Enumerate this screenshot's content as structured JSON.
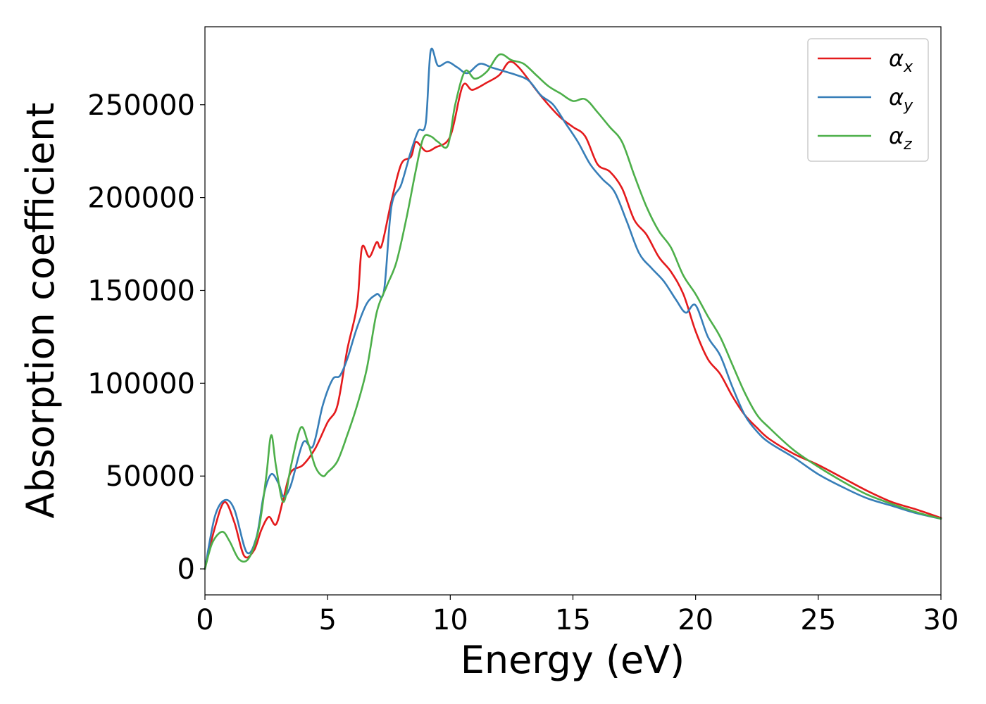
{
  "chart_data": {
    "type": "line",
    "title": "",
    "xlabel": "Energy (eV)",
    "ylabel": "Absorption coefficient",
    "xlim": [
      0,
      30
    ],
    "ylim": [
      -14000,
      292000
    ],
    "xticks": [
      0,
      5,
      10,
      15,
      20,
      25,
      30
    ],
    "yticks": [
      0,
      50000,
      100000,
      150000,
      200000,
      250000
    ],
    "legend_position": "top-right",
    "grid": false,
    "series": [
      {
        "name": "αx",
        "symbol": "α",
        "subscript": "x",
        "color": "#e41a1c",
        "x": [
          0,
          0.4,
          0.8,
          1.2,
          1.6,
          2.0,
          2.3,
          2.6,
          2.9,
          3.2,
          3.5,
          4.0,
          4.5,
          5.0,
          5.4,
          5.8,
          6.2,
          6.4,
          6.7,
          7.0,
          7.2,
          7.6,
          8.0,
          8.4,
          8.6,
          9.0,
          9.4,
          10.0,
          10.5,
          10.9,
          11.5,
          12.0,
          12.4,
          12.8,
          13.5,
          14.0,
          14.5,
          15.0,
          15.5,
          16.0,
          16.5,
          17.0,
          17.5,
          18.0,
          18.5,
          19.0,
          19.5,
          20.0,
          20.5,
          21.0,
          21.5,
          22.0,
          22.5,
          23.0,
          24.0,
          25.0,
          26.0,
          27.0,
          28.0,
          29.0,
          30.0
        ],
        "y": [
          0,
          22000,
          36000,
          25000,
          7000,
          10000,
          21000,
          28000,
          24000,
          38000,
          52000,
          56000,
          65000,
          79000,
          88000,
          118000,
          142000,
          173000,
          168000,
          176000,
          174000,
          198000,
          218000,
          222000,
          230000,
          225000,
          227000,
          233000,
          260000,
          258000,
          262000,
          266000,
          273000,
          270000,
          258000,
          250000,
          243000,
          238000,
          233000,
          218000,
          214000,
          205000,
          188000,
          180000,
          168000,
          160000,
          148000,
          128000,
          113000,
          105000,
          93000,
          83000,
          76000,
          70000,
          62000,
          56000,
          49000,
          42000,
          36000,
          32000,
          27500
        ]
      },
      {
        "name": "αy",
        "symbol": "α",
        "subscript": "y",
        "color": "#377eb8",
        "x": [
          0,
          0.4,
          0.8,
          1.2,
          1.7,
          2.1,
          2.4,
          2.7,
          3.0,
          3.2,
          3.5,
          4.0,
          4.4,
          4.8,
          5.2,
          5.5,
          5.8,
          6.2,
          6.6,
          7.0,
          7.3,
          7.6,
          8.0,
          8.4,
          8.7,
          9.0,
          9.2,
          9.5,
          9.9,
          10.3,
          10.7,
          11.2,
          11.7,
          12.2,
          12.7,
          13.2,
          13.7,
          14.2,
          14.7,
          15.2,
          15.7,
          16.2,
          16.7,
          17.2,
          17.7,
          18.2,
          18.7,
          19.2,
          19.6,
          20.0,
          20.5,
          21.0,
          21.5,
          22.0,
          22.5,
          23.0,
          24.0,
          25.0,
          26.0,
          27.0,
          28.0,
          29.0,
          30.0
        ],
        "y": [
          0,
          28000,
          37000,
          32000,
          9000,
          17000,
          40000,
          51000,
          46000,
          39000,
          45000,
          68000,
          66000,
          88000,
          102000,
          104000,
          113000,
          130000,
          143000,
          148000,
          150000,
          195000,
          207000,
          225000,
          236000,
          240000,
          279000,
          271000,
          273000,
          270000,
          267000,
          272000,
          270000,
          268000,
          266000,
          263000,
          255000,
          250000,
          240000,
          230000,
          218000,
          210000,
          203000,
          187000,
          170000,
          162000,
          155000,
          145000,
          138000,
          142000,
          125000,
          115000,
          98000,
          83000,
          74000,
          68000,
          60000,
          51000,
          44000,
          38000,
          34000,
          30000,
          27000
        ]
      },
      {
        "name": "αz",
        "symbol": "α",
        "subscript": "z",
        "color": "#4daf4a",
        "x": [
          0,
          0.3,
          0.7,
          1.0,
          1.4,
          1.8,
          2.2,
          2.5,
          2.7,
          2.9,
          3.2,
          3.5,
          3.9,
          4.2,
          4.5,
          4.8,
          5.0,
          5.4,
          5.8,
          6.2,
          6.6,
          7.0,
          7.4,
          7.8,
          8.2,
          8.6,
          8.9,
          9.2,
          9.5,
          9.9,
          10.2,
          10.6,
          11.0,
          11.5,
          12.0,
          12.5,
          13.0,
          13.5,
          14.0,
          14.5,
          15.0,
          15.5,
          16.0,
          16.5,
          17.0,
          17.5,
          18.0,
          18.5,
          19.0,
          19.5,
          20.0,
          20.5,
          21.0,
          21.5,
          22.0,
          22.5,
          23.0,
          24.0,
          25.0,
          26.0,
          27.0,
          28.0,
          29.0,
          30.0
        ],
        "y": [
          0,
          14000,
          20000,
          15000,
          5000,
          6000,
          22000,
          50000,
          72000,
          55000,
          36000,
          55000,
          76000,
          68000,
          55000,
          50000,
          52000,
          58000,
          72000,
          88000,
          108000,
          138000,
          152000,
          165000,
          188000,
          215000,
          232000,
          233000,
          230000,
          228000,
          250000,
          268000,
          264000,
          268000,
          277000,
          274000,
          272000,
          266000,
          260000,
          256000,
          252000,
          253000,
          246000,
          238000,
          230000,
          212000,
          195000,
          182000,
          173000,
          158000,
          148000,
          136000,
          125000,
          110000,
          95000,
          83000,
          76000,
          64000,
          55000,
          47000,
          40000,
          35000,
          30500,
          27000
        ]
      }
    ]
  }
}
